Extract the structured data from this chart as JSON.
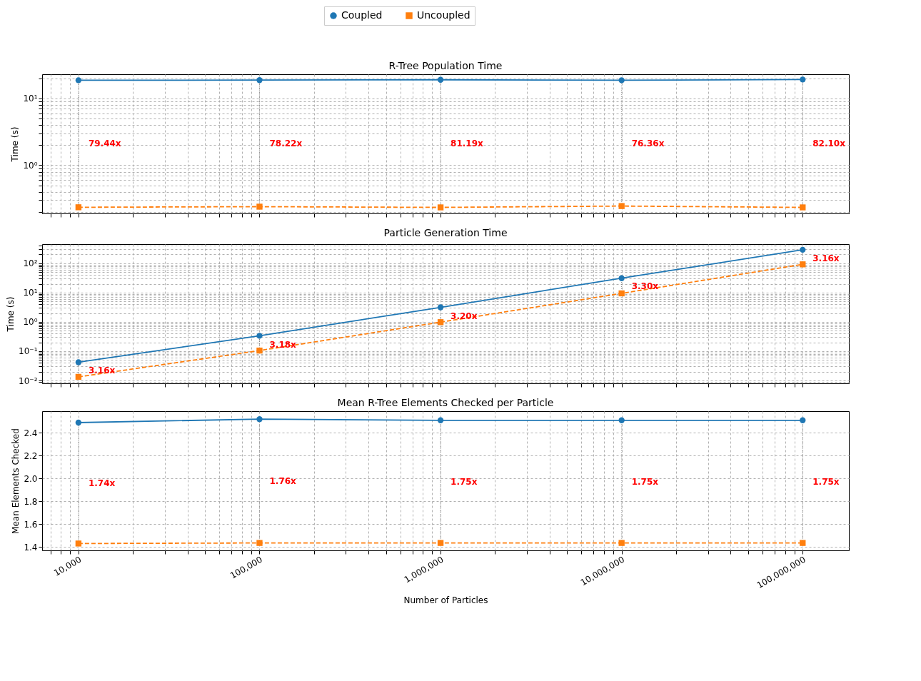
{
  "chart_data": [
    {
      "type": "line",
      "title": "R-Tree Population Time",
      "ylabel": "Time (s)",
      "log": "xy",
      "grid": true,
      "legend": "top",
      "tick_labels": "y",
      "x": [
        10000,
        100000,
        1000000,
        10000000,
        100000000
      ],
      "xlim": [
        6300,
        180000000
      ],
      "xticks": [
        {
          "value": 7000,
          "label": null
        },
        {
          "value": 8000,
          "label": null
        },
        {
          "value": 9000,
          "label": null
        },
        {
          "value": 10000,
          "label": null
        },
        {
          "value": 20000,
          "label": null
        },
        {
          "value": 30000,
          "label": null
        },
        {
          "value": 40000,
          "label": null
        },
        {
          "value": 50000,
          "label": null
        },
        {
          "value": 60000,
          "label": null
        },
        {
          "value": 70000,
          "label": null
        },
        {
          "value": 80000,
          "label": null
        },
        {
          "value": 90000,
          "label": null
        },
        {
          "value": 100000,
          "label": null
        },
        {
          "value": 200000,
          "label": null
        },
        {
          "value": 300000,
          "label": null
        },
        {
          "value": 400000,
          "label": null
        },
        {
          "value": 500000,
          "label": null
        },
        {
          "value": 600000,
          "label": null
        },
        {
          "value": 700000,
          "label": null
        },
        {
          "value": 800000,
          "label": null
        },
        {
          "value": 900000,
          "label": null
        },
        {
          "value": 1000000,
          "label": null
        },
        {
          "value": 2000000,
          "label": null
        },
        {
          "value": 3000000,
          "label": null
        },
        {
          "value": 4000000,
          "label": null
        },
        {
          "value": 5000000,
          "label": null
        },
        {
          "value": 6000000,
          "label": null
        },
        {
          "value": 7000000,
          "label": null
        },
        {
          "value": 8000000,
          "label": null
        },
        {
          "value": 9000000,
          "label": null
        },
        {
          "value": 10000000,
          "label": null
        },
        {
          "value": 20000000,
          "label": null
        },
        {
          "value": 30000000,
          "label": null
        },
        {
          "value": 40000000,
          "label": null
        },
        {
          "value": 50000000,
          "label": null
        },
        {
          "value": 60000000,
          "label": null
        },
        {
          "value": 70000000,
          "label": null
        },
        {
          "value": 80000000,
          "label": null
        },
        {
          "value": 90000000,
          "label": null
        },
        {
          "value": 100000000,
          "label": null
        }
      ],
      "ylim": [
        0.19,
        23
      ],
      "yticks": [
        {
          "value": 0.2,
          "label": null
        },
        {
          "value": 0.3,
          "label": null
        },
        {
          "value": 0.4,
          "label": null
        },
        {
          "value": 0.5,
          "label": null
        },
        {
          "value": 0.6,
          "label": null
        },
        {
          "value": 0.7,
          "label": null
        },
        {
          "value": 0.8,
          "label": null
        },
        {
          "value": 0.9,
          "label": null
        },
        {
          "value": 1,
          "label": "10⁰"
        },
        {
          "value": 2,
          "label": null
        },
        {
          "value": 3,
          "label": null
        },
        {
          "value": 4,
          "label": null
        },
        {
          "value": 5,
          "label": null
        },
        {
          "value": 6,
          "label": null
        },
        {
          "value": 7,
          "label": null
        },
        {
          "value": 8,
          "label": null
        },
        {
          "value": 9,
          "label": null
        },
        {
          "value": 10,
          "label": "10¹"
        },
        {
          "value": 20,
          "label": null
        }
      ],
      "series": [
        {
          "name": "Coupled",
          "color": "#1f77b4",
          "marker": "circle",
          "line_style": "solid",
          "values": [
            18.7,
            18.8,
            19.0,
            18.7,
            19.2
          ]
        },
        {
          "name": "Uncoupled",
          "color": "#ff7f0e",
          "marker": "square",
          "line_style": "dashed",
          "values": [
            0.235,
            0.24,
            0.234,
            0.245,
            0.234
          ]
        }
      ],
      "annotations": [
        "79.44x",
        "78.22x",
        "81.19x",
        "76.36x",
        "82.10x"
      ]
    },
    {
      "type": "line",
      "title": "Particle Generation Time",
      "ylabel": "Time (s)",
      "log": "xy",
      "grid": true,
      "tick_labels": "y",
      "x": [
        10000,
        100000,
        1000000,
        10000000,
        100000000
      ],
      "xlim": [
        6300,
        180000000
      ],
      "xticks": [
        {
          "value": 7000,
          "label": null
        },
        {
          "value": 8000,
          "label": null
        },
        {
          "value": 9000,
          "label": null
        },
        {
          "value": 10000,
          "label": null
        },
        {
          "value": 20000,
          "label": null
        },
        {
          "value": 30000,
          "label": null
        },
        {
          "value": 40000,
          "label": null
        },
        {
          "value": 50000,
          "label": null
        },
        {
          "value": 60000,
          "label": null
        },
        {
          "value": 70000,
          "label": null
        },
        {
          "value": 80000,
          "label": null
        },
        {
          "value": 90000,
          "label": null
        },
        {
          "value": 100000,
          "label": null
        },
        {
          "value": 200000,
          "label": null
        },
        {
          "value": 300000,
          "label": null
        },
        {
          "value": 400000,
          "label": null
        },
        {
          "value": 500000,
          "label": null
        },
        {
          "value": 600000,
          "label": null
        },
        {
          "value": 700000,
          "label": null
        },
        {
          "value": 800000,
          "label": null
        },
        {
          "value": 900000,
          "label": null
        },
        {
          "value": 1000000,
          "label": null
        },
        {
          "value": 2000000,
          "label": null
        },
        {
          "value": 3000000,
          "label": null
        },
        {
          "value": 4000000,
          "label": null
        },
        {
          "value": 5000000,
          "label": null
        },
        {
          "value": 6000000,
          "label": null
        },
        {
          "value": 7000000,
          "label": null
        },
        {
          "value": 8000000,
          "label": null
        },
        {
          "value": 9000000,
          "label": null
        },
        {
          "value": 10000000,
          "label": null
        },
        {
          "value": 20000000,
          "label": null
        },
        {
          "value": 30000000,
          "label": null
        },
        {
          "value": 40000000,
          "label": null
        },
        {
          "value": 50000000,
          "label": null
        },
        {
          "value": 60000000,
          "label": null
        },
        {
          "value": 70000000,
          "label": null
        },
        {
          "value": 80000000,
          "label": null
        },
        {
          "value": 90000000,
          "label": null
        },
        {
          "value": 100000000,
          "label": null
        }
      ],
      "ylim": [
        0.008,
        450
      ],
      "yticks": [
        {
          "value": 0.009,
          "label": null
        },
        {
          "value": 0.01,
          "label": "10⁻²"
        },
        {
          "value": 0.02,
          "label": null
        },
        {
          "value": 0.03,
          "label": null
        },
        {
          "value": 0.04,
          "label": null
        },
        {
          "value": 0.05,
          "label": null
        },
        {
          "value": 0.06,
          "label": null
        },
        {
          "value": 0.07,
          "label": null
        },
        {
          "value": 0.08,
          "label": null
        },
        {
          "value": 0.09,
          "label": null
        },
        {
          "value": 0.1,
          "label": "10⁻¹"
        },
        {
          "value": 0.2,
          "label": null
        },
        {
          "value": 0.3,
          "label": null
        },
        {
          "value": 0.4,
          "label": null
        },
        {
          "value": 0.5,
          "label": null
        },
        {
          "value": 0.6,
          "label": null
        },
        {
          "value": 0.7,
          "label": null
        },
        {
          "value": 0.8,
          "label": null
        },
        {
          "value": 0.9,
          "label": null
        },
        {
          "value": 1,
          "label": "10⁰"
        },
        {
          "value": 2,
          "label": null
        },
        {
          "value": 3,
          "label": null
        },
        {
          "value": 4,
          "label": null
        },
        {
          "value": 5,
          "label": null
        },
        {
          "value": 6,
          "label": null
        },
        {
          "value": 7,
          "label": null
        },
        {
          "value": 8,
          "label": null
        },
        {
          "value": 9,
          "label": null
        },
        {
          "value": 10,
          "label": "10¹"
        },
        {
          "value": 20,
          "label": null
        },
        {
          "value": 30,
          "label": null
        },
        {
          "value": 40,
          "label": null
        },
        {
          "value": 50,
          "label": null
        },
        {
          "value": 60,
          "label": null
        },
        {
          "value": 70,
          "label": null
        },
        {
          "value": 80,
          "label": null
        },
        {
          "value": 90,
          "label": null
        },
        {
          "value": 100,
          "label": "10²"
        },
        {
          "value": 200,
          "label": null
        },
        {
          "value": 300,
          "label": null
        },
        {
          "value": 400,
          "label": null
        }
      ],
      "series": [
        {
          "name": "Coupled",
          "color": "#1f77b4",
          "marker": "circle",
          "line_style": "solid",
          "values": [
            0.042,
            0.335,
            3.14,
            31,
            290
          ]
        },
        {
          "name": "Uncoupled",
          "color": "#ff7f0e",
          "marker": "square",
          "line_style": "dashed",
          "values": [
            0.0133,
            0.105,
            0.98,
            9.4,
            92
          ]
        }
      ],
      "annotations": [
        {
          "text": "3.16x",
          "x": 10000,
          "y": 0.022
        },
        {
          "text": "3.18x",
          "x": 100000,
          "y": 0.17
        },
        {
          "text": "3.20x",
          "x": 1000000,
          "y": 1.6
        },
        {
          "text": "3.30x",
          "x": 10000000,
          "y": 16
        },
        {
          "text": "3.16x",
          "x": 100000000,
          "y": 150
        }
      ]
    },
    {
      "type": "line",
      "title": "Mean R-Tree Elements Checked per Particle",
      "xlabel": "Number of Particles",
      "ylabel": "Mean Elements Checked",
      "log": "x",
      "grid": true,
      "x": [
        10000,
        100000,
        1000000,
        10000000,
        100000000
      ],
      "xlim": [
        6300,
        180000000
      ],
      "xticks": [
        {
          "value": 7000,
          "label": null
        },
        {
          "value": 8000,
          "label": null
        },
        {
          "value": 9000,
          "label": null
        },
        {
          "value": 10000,
          "label": "10,000"
        },
        {
          "value": 20000,
          "label": null
        },
        {
          "value": 30000,
          "label": null
        },
        {
          "value": 40000,
          "label": null
        },
        {
          "value": 50000,
          "label": null
        },
        {
          "value": 60000,
          "label": null
        },
        {
          "value": 70000,
          "label": null
        },
        {
          "value": 80000,
          "label": null
        },
        {
          "value": 90000,
          "label": null
        },
        {
          "value": 100000,
          "label": "100,000"
        },
        {
          "value": 200000,
          "label": null
        },
        {
          "value": 300000,
          "label": null
        },
        {
          "value": 400000,
          "label": null
        },
        {
          "value": 500000,
          "label": null
        },
        {
          "value": 600000,
          "label": null
        },
        {
          "value": 700000,
          "label": null
        },
        {
          "value": 800000,
          "label": null
        },
        {
          "value": 900000,
          "label": null
        },
        {
          "value": 1000000,
          "label": "1,000,000"
        },
        {
          "value": 2000000,
          "label": null
        },
        {
          "value": 3000000,
          "label": null
        },
        {
          "value": 4000000,
          "label": null
        },
        {
          "value": 5000000,
          "label": null
        },
        {
          "value": 6000000,
          "label": null
        },
        {
          "value": 7000000,
          "label": null
        },
        {
          "value": 8000000,
          "label": null
        },
        {
          "value": 9000000,
          "label": null
        },
        {
          "value": 10000000,
          "label": "10,000,000"
        },
        {
          "value": 20000000,
          "label": null
        },
        {
          "value": 30000000,
          "label": null
        },
        {
          "value": 40000000,
          "label": null
        },
        {
          "value": 50000000,
          "label": null
        },
        {
          "value": 60000000,
          "label": null
        },
        {
          "value": 70000000,
          "label": null
        },
        {
          "value": 80000000,
          "label": null
        },
        {
          "value": 90000000,
          "label": null
        },
        {
          "value": 100000000,
          "label": "100,000,000"
        }
      ],
      "ylim": [
        1.37,
        2.59
      ],
      "yticks": [
        1.4,
        1.6,
        1.8,
        {
          "value": 2,
          "label": "2.0"
        },
        2.2,
        2.4
      ],
      "series": [
        {
          "name": "Coupled",
          "color": "#1f77b4",
          "marker": "circle",
          "line_style": "solid",
          "values": [
            2.49,
            2.52,
            2.51,
            2.51,
            2.51
          ]
        },
        {
          "name": "Uncoupled",
          "color": "#ff7f0e",
          "marker": "square",
          "line_style": "dashed",
          "values": [
            1.43,
            1.435,
            1.435,
            1.435,
            1.435
          ]
        }
      ],
      "annotations": [
        "1.74x",
        "1.76x",
        "1.75x",
        "1.75x",
        "1.75x"
      ]
    }
  ]
}
